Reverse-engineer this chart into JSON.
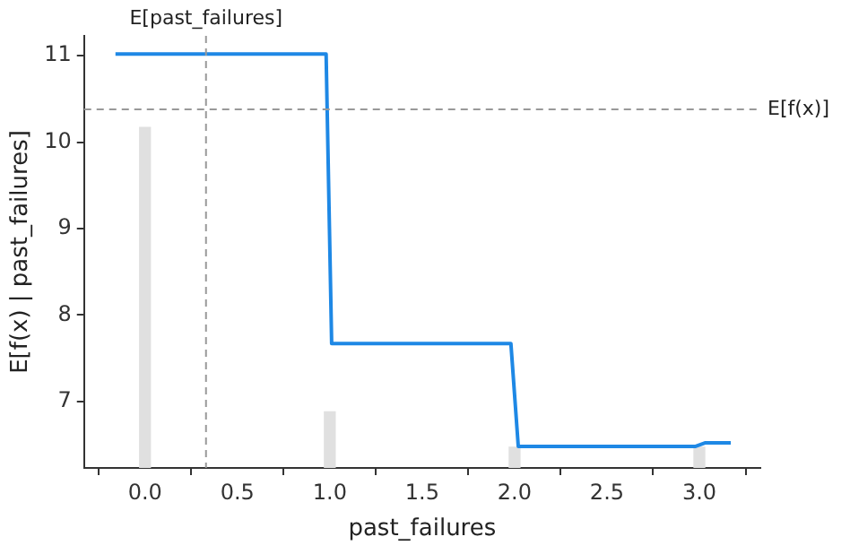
{
  "chart_data": {
    "type": "line",
    "xlabel": "past_failures",
    "ylabel": "E[f(x) | past_failures]",
    "xlim": [
      -0.33,
      3.33
    ],
    "ylim": [
      6.23,
      11.23
    ],
    "xticks": [
      {
        "value": 0,
        "label": "0.0"
      },
      {
        "value": 0.5,
        "label": "0.5"
      },
      {
        "value": 1,
        "label": "1.0"
      },
      {
        "value": 1.5,
        "label": "1.5"
      },
      {
        "value": 2,
        "label": "2.0"
      },
      {
        "value": 2.5,
        "label": "2.5"
      },
      {
        "value": 3,
        "label": "3.0"
      }
    ],
    "yticks": [
      7,
      8,
      9,
      10,
      11
    ],
    "series": [
      {
        "type": "bar",
        "color": "#e0e0e0",
        "x": [
          0,
          1,
          2,
          3
        ],
        "base": [
          6.23,
          6.23,
          6.23,
          6.23
        ],
        "values": [
          3.94,
          0.65,
          0.24,
          0.24
        ]
      },
      {
        "color": "#1e88e5",
        "x": [
          -0.16,
          0.98,
          1.01,
          1.98,
          2.02,
          2.98,
          3.03,
          3.17
        ],
        "values": [
          11.02,
          11.02,
          7.67,
          7.67,
          6.48,
          6.48,
          6.52,
          6.52
        ]
      }
    ],
    "ref_lines": [
      {
        "axis": "x",
        "value": 0.33,
        "label": "E[past_failures]",
        "color": "#999999",
        "line_style": "dashed"
      },
      {
        "axis": "y",
        "value": 10.38,
        "label": "E[f(x)]",
        "color": "#999999",
        "line_style": "dashed"
      }
    ],
    "grid": false,
    "legend": false
  }
}
